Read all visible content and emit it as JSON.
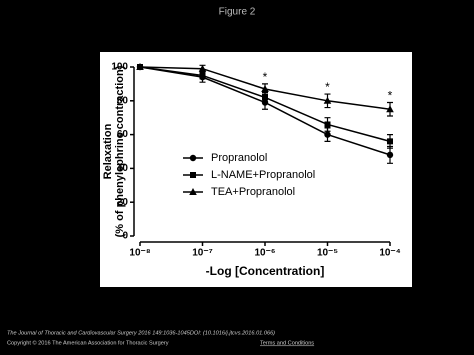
{
  "title": "Figure 2",
  "chart_data": {
    "type": "line",
    "xlabel": "-Log [Concentration]",
    "ylabel": [
      "Relaxation",
      "(% of phenylephrine contraction)"
    ],
    "x": [
      1e-08,
      1e-07,
      1e-06,
      1e-05,
      0.0001
    ],
    "xlog": true,
    "xlim": [
      1e-08,
      0.0001
    ],
    "xticks": [
      {
        "value": 1e-08,
        "label": "10⁻⁸"
      },
      {
        "value": 1e-07,
        "label": "10⁻⁷"
      },
      {
        "value": 1e-06,
        "label": "10⁻⁶"
      },
      {
        "value": 1e-05,
        "label": "10⁻⁵"
      },
      {
        "value": 0.0001,
        "label": "10⁻⁴"
      }
    ],
    "ylim": [
      0,
      100
    ],
    "yticks": [
      0,
      20,
      40,
      60,
      80,
      100
    ],
    "series": [
      {
        "name": "Propranolol",
        "color": "#000000",
        "marker": "circle",
        "values": [
          100,
          94,
          79,
          60,
          48
        ],
        "errors": [
          0,
          3,
          4,
          4,
          5
        ]
      },
      {
        "name": "L-NAME+Propranolol",
        "color": "#000000",
        "marker": "square",
        "values": [
          100,
          95,
          82,
          66,
          56
        ],
        "errors": [
          0,
          2,
          3,
          4,
          4
        ]
      },
      {
        "name": "TEA+Propranolol",
        "color": "#000000",
        "marker": "triangle",
        "values": [
          100,
          99,
          87,
          80,
          75
        ],
        "errors": [
          0,
          2,
          3,
          4,
          4
        ]
      }
    ],
    "annotations": [
      {
        "text": "*",
        "x": 1e-06
      },
      {
        "text": "*",
        "x": 1e-05
      },
      {
        "text": "*",
        "x": 0.0001
      }
    ]
  },
  "footer": {
    "citation": "The Journal of Thoracic and Cardiovascular Surgery 2016 149:1036-1045DOI: (10.1016/j.jtcvs.2016.01.066)",
    "copyright": "Copyright © 2016 The American Association for Thoracic Surgery",
    "link": "Terms and Conditions"
  }
}
